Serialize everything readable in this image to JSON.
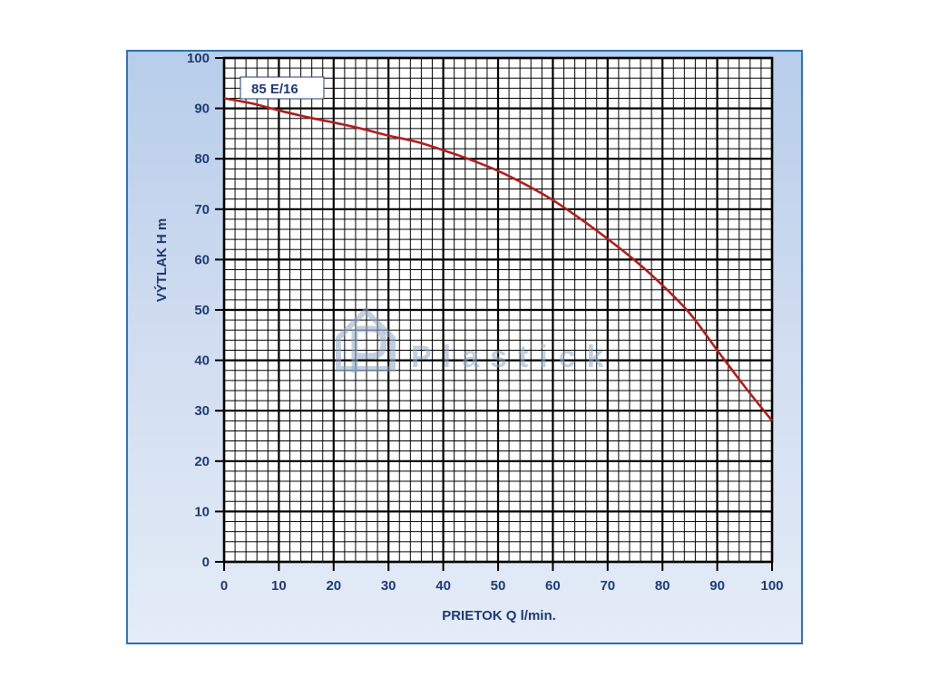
{
  "chart_data": {
    "type": "line",
    "title": "",
    "xlabel": "PRIETOK  Q  l/min.",
    "ylabel": "VÝTLAK  H  m",
    "xlim": [
      0,
      100
    ],
    "ylim": [
      0,
      100
    ],
    "xticks": [
      0,
      10,
      20,
      30,
      40,
      50,
      60,
      70,
      80,
      90,
      100
    ],
    "yticks": [
      0,
      10,
      20,
      30,
      40,
      50,
      60,
      70,
      80,
      90,
      100
    ],
    "grid": true,
    "legend": "top-left",
    "series": [
      {
        "name": "85 E/16",
        "color": "#b01e1e",
        "x": [
          0,
          5,
          10,
          15,
          20,
          25,
          30,
          35,
          40,
          45,
          50,
          55,
          60,
          65,
          70,
          75,
          80,
          85,
          90,
          95,
          100
        ],
        "y": [
          92,
          91,
          89.6,
          88.3,
          87.2,
          86,
          84.6,
          83.4,
          81.7,
          79.8,
          77.6,
          74.9,
          71.8,
          68.1,
          64.1,
          59.8,
          54.9,
          49.3,
          42,
          34.8,
          28
        ]
      }
    ]
  },
  "watermark": {
    "text": "Plastick",
    "icon": "plastick-logo-icon",
    "color": "#8fa8c6"
  },
  "colors": {
    "panel_border": "#2e6fb0",
    "grid": "#000000",
    "text": "#1f3a73",
    "curve": "#b01e1e"
  }
}
